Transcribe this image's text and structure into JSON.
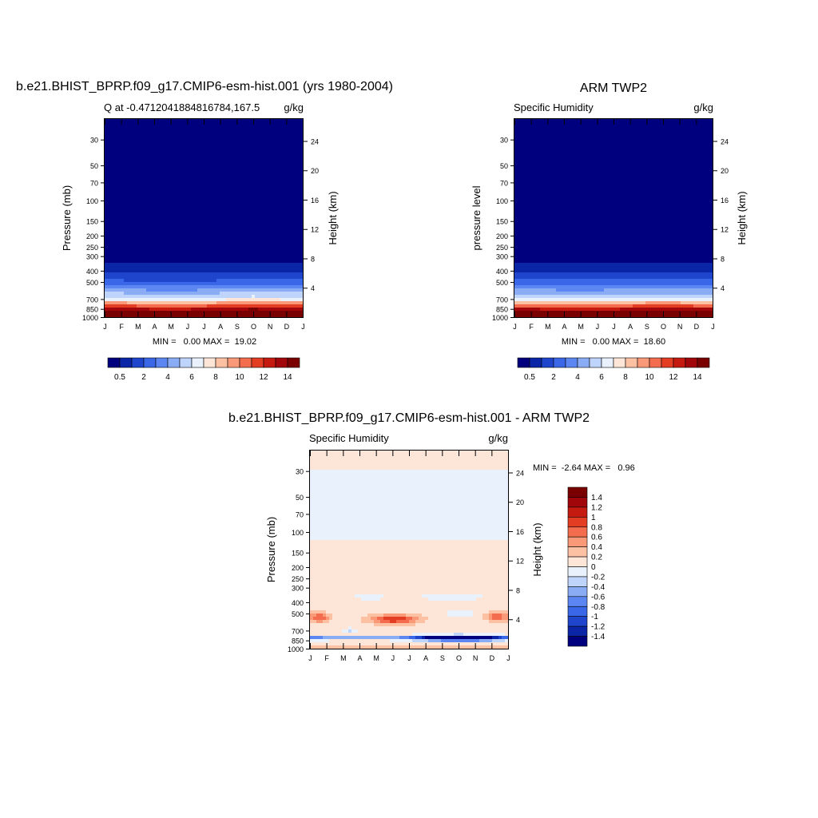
{
  "chart_data": [
    {
      "type": "heatmap",
      "title": "b.e21.BHIST_BPRP.f09_g17.CMIP6-esm-hist.001 (yrs 1980-2004)",
      "subtitle_left": "Q at -0.4712041884816784,167.5",
      "subtitle_right": "g/kg",
      "ylabel": "Pressure (mb)",
      "y2label": "Height (km)",
      "x_ticks": [
        "J",
        "F",
        "M",
        "A",
        "M",
        "J",
        "J",
        "A",
        "S",
        "O",
        "N",
        "D",
        "J"
      ],
      "y_ticks": [
        "30",
        "50",
        "70",
        "100",
        "150",
        "200",
        "250",
        "300",
        "400",
        "500",
        "700",
        "850",
        "1000"
      ],
      "y2_ticks": [
        "24",
        "20",
        "16",
        "12",
        "8",
        "4"
      ],
      "stats": "MIN =   0.00 MAX =  19.02",
      "min": 0.0,
      "max": 19.02,
      "colorbar": {
        "orientation": "horizontal",
        "levels": [
          0.5,
          1,
          2,
          3,
          4,
          5,
          6,
          7,
          8,
          9,
          10,
          11,
          12,
          13,
          14
        ],
        "labels": [
          "0.5",
          "2",
          "4",
          "6",
          "8",
          "10",
          "12",
          "14"
        ],
        "colors": [
          "#00007f",
          "#0a26a6",
          "#1f45cc",
          "#3a66e8",
          "#5c87f2",
          "#8aacf5",
          "#bfd4fa",
          "#e8f1fc",
          "#fde6d8",
          "#fcc0a2",
          "#f99977",
          "#f26c4d",
          "#e33d24",
          "#c51a10",
          "#a1060a",
          "#7a0000"
        ]
      },
      "profile": [
        {
          "p": 30,
          "value": 0.0
        },
        {
          "p": 300,
          "value": 0.2
        },
        {
          "p": 400,
          "value": 0.9
        },
        {
          "p": 500,
          "value": 2.2
        },
        {
          "p": 700,
          "value": 6.5
        },
        {
          "p": 850,
          "value": 13.5
        },
        {
          "p": 1000,
          "value": 18.0
        }
      ],
      "annual_cycle_shift": [
        0.0,
        0.0,
        0.05,
        0.08,
        0.1,
        0.08,
        0.05,
        0.0,
        -0.04,
        -0.06,
        -0.04,
        0.0,
        0.0
      ]
    },
    {
      "type": "heatmap",
      "title": "ARM TWP2",
      "subtitle_left": "Specific Humidity",
      "subtitle_right": "g/kg",
      "ylabel": "pressure level",
      "y2label": "Height (km)",
      "x_ticks": [
        "J",
        "F",
        "M",
        "A",
        "M",
        "J",
        "J",
        "A",
        "S",
        "O",
        "N",
        "D",
        "J"
      ],
      "y_ticks": [
        "30",
        "50",
        "70",
        "100",
        "150",
        "200",
        "250",
        "300",
        "400",
        "500",
        "700",
        "850",
        "1000"
      ],
      "y2_ticks": [
        "24",
        "20",
        "16",
        "12",
        "8",
        "4"
      ],
      "stats": "MIN =   0.00 MAX =  18.60",
      "min": 0.0,
      "max": 18.6,
      "colorbar": {
        "orientation": "horizontal",
        "levels": [
          0.5,
          1,
          2,
          3,
          4,
          5,
          6,
          7,
          8,
          9,
          10,
          11,
          12,
          13,
          14
        ],
        "labels": [
          "0.5",
          "2",
          "4",
          "6",
          "8",
          "10",
          "12",
          "14"
        ],
        "colors": [
          "#00007f",
          "#0a26a6",
          "#1f45cc",
          "#3a66e8",
          "#5c87f2",
          "#8aacf5",
          "#bfd4fa",
          "#e8f1fc",
          "#fde6d8",
          "#fcc0a2",
          "#f99977",
          "#f26c4d",
          "#e33d24",
          "#c51a10",
          "#a1060a",
          "#7a0000"
        ]
      },
      "profile": [
        {
          "p": 30,
          "value": 0.0
        },
        {
          "p": 300,
          "value": 0.2
        },
        {
          "p": 400,
          "value": 0.9
        },
        {
          "p": 500,
          "value": 2.3
        },
        {
          "p": 700,
          "value": 6.2
        },
        {
          "p": 850,
          "value": 13.0
        },
        {
          "p": 1000,
          "value": 17.8
        }
      ],
      "annual_cycle_shift": [
        0.0,
        0.0,
        0.03,
        0.05,
        0.06,
        0.05,
        0.03,
        0.0,
        -0.03,
        -0.04,
        -0.03,
        0.0,
        0.0
      ]
    },
    {
      "type": "heatmap",
      "title": "b.e21.BHIST_BPRP.f09_g17.CMIP6-esm-hist.001 - ARM TWP2",
      "subtitle_left": "Specific Humidity",
      "subtitle_right": "g/kg",
      "ylabel": "Pressure (mb)",
      "y2label": "Height (km)",
      "x_ticks": [
        "J",
        "F",
        "M",
        "A",
        "M",
        "J",
        "J",
        "A",
        "S",
        "O",
        "N",
        "D",
        "J"
      ],
      "y_ticks": [
        "30",
        "50",
        "70",
        "100",
        "150",
        "200",
        "250",
        "300",
        "400",
        "500",
        "700",
        "850",
        "1000"
      ],
      "y2_ticks": [
        "24",
        "20",
        "16",
        "12",
        "8",
        "4"
      ],
      "stats": "MIN =  -2.64 MAX =   0.96",
      "min": -2.64,
      "max": 0.96,
      "colorbar": {
        "orientation": "vertical",
        "levels": [
          -1.4,
          -1.2,
          -1,
          -0.8,
          -0.6,
          -0.4,
          -0.2,
          0,
          0.2,
          0.4,
          0.6,
          0.8,
          1,
          1.2,
          1.4
        ],
        "labels": [
          "1.4",
          "1.2",
          "1",
          "0.8",
          "0.6",
          "0.4",
          "0.2",
          "0",
          "-0.2",
          "-0.4",
          "-0.6",
          "-0.8",
          "-1",
          "-1.2",
          "-1.4"
        ],
        "colors": [
          "#00007f",
          "#0a26a6",
          "#1f45cc",
          "#3a66e8",
          "#5c87f2",
          "#8aacf5",
          "#bfd4fa",
          "#e8f1fc",
          "#fde6d8",
          "#fcc0a2",
          "#f99977",
          "#f26c4d",
          "#e33d24",
          "#c51a10",
          "#a1060a",
          "#7a0000"
        ]
      },
      "regions": [
        {
          "p_top": 30,
          "p_bottom": 118,
          "value": -0.1
        },
        {
          "p_top": 118,
          "p_bottom": 1000,
          "value": 0.1
        }
      ],
      "features": [
        {
          "month_center": 5.1,
          "p_center": 560,
          "month_halfwidth": 1.4,
          "p_halfwidth_log": 0.09,
          "value": 0.9
        },
        {
          "month_center": 0.6,
          "p_center": 540,
          "month_halfwidth": 0.6,
          "p_halfwidth_log": 0.09,
          "value": 0.7
        },
        {
          "month_center": 11.3,
          "p_center": 530,
          "month_halfwidth": 0.7,
          "p_halfwidth_log": 0.08,
          "value": 0.65
        },
        {
          "month_center": 3.6,
          "p_center": 360,
          "month_halfwidth": 0.9,
          "p_halfwidth_log": 0.06,
          "value": -0.25
        },
        {
          "month_center": 8.7,
          "p_center": 360,
          "month_halfwidth": 2.0,
          "p_halfwidth_log": 0.07,
          "value": -0.25
        },
        {
          "month_center": 9.1,
          "p_center": 500,
          "month_halfwidth": 0.9,
          "p_halfwidth_log": 0.04,
          "value": -0.45
        },
        {
          "month_center": 2.4,
          "p_center": 700,
          "month_halfwidth": 0.5,
          "p_halfwidth_log": 0.05,
          "value": -0.35
        },
        {
          "month_center": 9.0,
          "p_center": 810,
          "month_halfwidth": 2.6,
          "p_halfwidth_log": 0.05,
          "value": -2.6
        },
        {
          "month_center": 2.8,
          "p_center": 820,
          "month_halfwidth": 3.5,
          "p_halfwidth_log": 0.022,
          "value": -1.5
        },
        {
          "month_center": 6.0,
          "p_center": 980,
          "month_halfwidth": 9.0,
          "p_halfwidth_log": 0.012,
          "value": 0.55
        }
      ]
    }
  ]
}
